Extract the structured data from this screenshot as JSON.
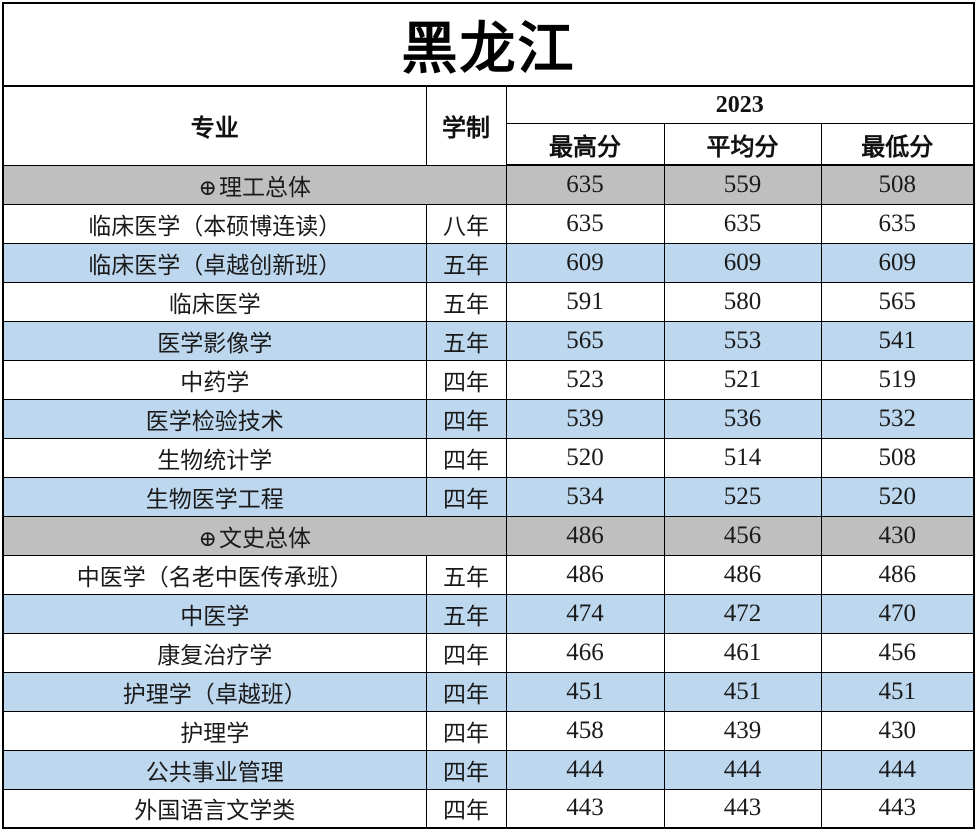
{
  "title": "黑龙江",
  "header": {
    "major": "专业",
    "duration": "学制",
    "year": "2023",
    "highest": "最高分",
    "average": "平均分",
    "lowest": "最低分"
  },
  "colors": {
    "group_row_bg": "#BFBFBF",
    "alt_row_bg": "#BDD7EE",
    "border": "#000000"
  },
  "rows": [
    {
      "type": "group",
      "icon": "⊕",
      "major": "理工总体",
      "highest": "635",
      "average": "559",
      "lowest": "508",
      "shade": "gray"
    },
    {
      "type": "data",
      "major": "临床医学（本硕博连读）",
      "duration": "八年",
      "highest": "635",
      "average": "635",
      "lowest": "635",
      "shade": "white"
    },
    {
      "type": "data",
      "major": "临床医学（卓越创新班）",
      "duration": "五年",
      "highest": "609",
      "average": "609",
      "lowest": "609",
      "shade": "blue"
    },
    {
      "type": "data",
      "major": "临床医学",
      "duration": "五年",
      "highest": "591",
      "average": "580",
      "lowest": "565",
      "shade": "white"
    },
    {
      "type": "data",
      "major": "医学影像学",
      "duration": "五年",
      "highest": "565",
      "average": "553",
      "lowest": "541",
      "shade": "blue"
    },
    {
      "type": "data",
      "major": "中药学",
      "duration": "四年",
      "highest": "523",
      "average": "521",
      "lowest": "519",
      "shade": "white"
    },
    {
      "type": "data",
      "major": "医学检验技术",
      "duration": "四年",
      "highest": "539",
      "average": "536",
      "lowest": "532",
      "shade": "blue"
    },
    {
      "type": "data",
      "major": "生物统计学",
      "duration": "四年",
      "highest": "520",
      "average": "514",
      "lowest": "508",
      "shade": "white"
    },
    {
      "type": "data",
      "major": "生物医学工程",
      "duration": "四年",
      "highest": "534",
      "average": "525",
      "lowest": "520",
      "shade": "blue"
    },
    {
      "type": "group",
      "icon": "⊕",
      "major": "文史总体",
      "highest": "486",
      "average": "456",
      "lowest": "430",
      "shade": "gray"
    },
    {
      "type": "data",
      "major": "中医学（名老中医传承班）",
      "duration": "五年",
      "highest": "486",
      "average": "486",
      "lowest": "486",
      "shade": "white"
    },
    {
      "type": "data",
      "major": "中医学",
      "duration": "五年",
      "highest": "474",
      "average": "472",
      "lowest": "470",
      "shade": "blue"
    },
    {
      "type": "data",
      "major": "康复治疗学",
      "duration": "四年",
      "highest": "466",
      "average": "461",
      "lowest": "456",
      "shade": "white"
    },
    {
      "type": "data",
      "major": "护理学（卓越班）",
      "duration": "四年",
      "highest": "451",
      "average": "451",
      "lowest": "451",
      "shade": "blue"
    },
    {
      "type": "data",
      "major": "护理学",
      "duration": "四年",
      "highest": "458",
      "average": "439",
      "lowest": "430",
      "shade": "white"
    },
    {
      "type": "data",
      "major": "公共事业管理",
      "duration": "四年",
      "highest": "444",
      "average": "444",
      "lowest": "444",
      "shade": "blue"
    },
    {
      "type": "data",
      "major": "外国语言文学类",
      "duration": "四年",
      "highest": "443",
      "average": "443",
      "lowest": "443",
      "shade": "white"
    }
  ]
}
